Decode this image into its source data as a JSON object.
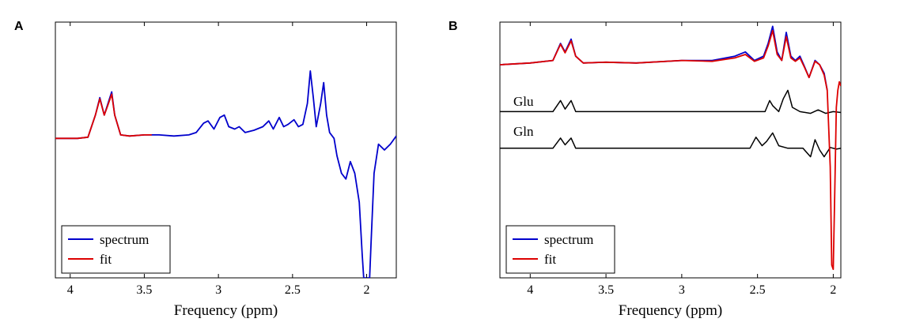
{
  "chart_data": [
    {
      "type": "line",
      "panel_label": "A",
      "xlabel": "Frequency (ppm)",
      "ylabel": "",
      "x_reversed": true,
      "xlim": [
        1.8,
        4.1
      ],
      "ylim": [
        -1.2,
        1.0
      ],
      "xticks": [
        4,
        3.5,
        3,
        2.5,
        2
      ],
      "xtick_labels": [
        "4",
        "3.5",
        "3",
        "2.5",
        "2"
      ],
      "legend": {
        "position": "bottom-left",
        "entries": [
          {
            "label": "spectrum",
            "color": "#0000cc"
          },
          {
            "label": "fit",
            "color": "#dd0000"
          }
        ]
      },
      "series": [
        {
          "name": "spectrum",
          "color": "#0000cc",
          "x": [
            4.1,
            3.95,
            3.88,
            3.83,
            3.8,
            3.77,
            3.75,
            3.72,
            3.7,
            3.66,
            3.6,
            3.5,
            3.4,
            3.3,
            3.2,
            3.15,
            3.1,
            3.07,
            3.03,
            2.99,
            2.96,
            2.93,
            2.89,
            2.86,
            2.82,
            2.76,
            2.7,
            2.66,
            2.63,
            2.59,
            2.56,
            2.53,
            2.49,
            2.46,
            2.43,
            2.4,
            2.38,
            2.36,
            2.34,
            2.31,
            2.29,
            2.27,
            2.25,
            2.22,
            2.2,
            2.17,
            2.14,
            2.11,
            2.08,
            2.05,
            2.03,
            2.02,
            1.98,
            1.97,
            1.95,
            1.92,
            1.88,
            1.84,
            1.8
          ],
          "y": [
            0.0,
            0.0,
            0.01,
            0.2,
            0.35,
            0.2,
            0.28,
            0.4,
            0.2,
            0.03,
            0.02,
            0.03,
            0.03,
            0.02,
            0.03,
            0.05,
            0.13,
            0.15,
            0.08,
            0.18,
            0.2,
            0.1,
            0.08,
            0.1,
            0.05,
            0.07,
            0.1,
            0.15,
            0.08,
            0.18,
            0.1,
            0.12,
            0.16,
            0.1,
            0.12,
            0.3,
            0.58,
            0.35,
            0.1,
            0.3,
            0.48,
            0.2,
            0.05,
            0.0,
            -0.15,
            -0.3,
            -0.35,
            -0.2,
            -0.3,
            -0.55,
            -1.0,
            -1.2,
            -1.2,
            -0.9,
            -0.3,
            -0.05,
            -0.1,
            -0.05,
            0.02
          ]
        },
        {
          "name": "fit",
          "color": "#dd0000",
          "x": [
            4.1,
            3.95,
            3.88,
            3.83,
            3.8,
            3.77,
            3.75,
            3.72,
            3.7,
            3.66,
            3.6,
            3.5,
            3.45
          ],
          "y": [
            0.0,
            0.0,
            0.01,
            0.2,
            0.34,
            0.2,
            0.27,
            0.38,
            0.2,
            0.03,
            0.02,
            0.03,
            0.03
          ]
        }
      ]
    },
    {
      "type": "line",
      "panel_label": "B",
      "xlabel": "Frequency (ppm)",
      "ylabel": "",
      "x_reversed": true,
      "xlim": [
        1.95,
        4.2
      ],
      "ylim": [
        -2.5,
        0.5
      ],
      "xticks": [
        4,
        3.5,
        3,
        2.5,
        2
      ],
      "xtick_labels": [
        "4",
        "3.5",
        "3",
        "2.5",
        "2"
      ],
      "annotations": [
        "Glu",
        "Gln"
      ],
      "legend": {
        "position": "bottom-left",
        "entries": [
          {
            "label": "spectrum",
            "color": "#0000cc"
          },
          {
            "label": "fit",
            "color": "#dd0000"
          }
        ]
      },
      "series": [
        {
          "name": "spectrum",
          "color": "#0000cc",
          "x": [
            4.2,
            4.0,
            3.85,
            3.8,
            3.77,
            3.73,
            3.7,
            3.65,
            3.5,
            3.3,
            3.0,
            2.8,
            2.65,
            2.58,
            2.52,
            2.46,
            2.43,
            2.4,
            2.37,
            2.34,
            2.31,
            2.28,
            2.25,
            2.22,
            2.19,
            2.16,
            2.12,
            2.09,
            2.06,
            2.04
          ],
          "y": [
            0.0,
            0.02,
            0.05,
            0.25,
            0.15,
            0.3,
            0.1,
            0.02,
            0.03,
            0.02,
            0.05,
            0.05,
            0.1,
            0.15,
            0.05,
            0.1,
            0.25,
            0.45,
            0.15,
            0.05,
            0.38,
            0.1,
            0.05,
            0.1,
            -0.02,
            -0.15,
            0.05,
            0.0,
            -0.1,
            -0.3
          ]
        },
        {
          "name": "fit",
          "color": "#dd0000",
          "x": [
            4.2,
            4.0,
            3.85,
            3.8,
            3.77,
            3.73,
            3.7,
            3.65,
            3.5,
            3.3,
            3.0,
            2.8,
            2.65,
            2.58,
            2.52,
            2.46,
            2.43,
            2.4,
            2.37,
            2.34,
            2.31,
            2.28,
            2.25,
            2.22,
            2.19,
            2.16,
            2.12,
            2.09,
            2.06,
            2.04,
            2.02,
            2.01,
            2.0,
            1.99,
            1.98,
            1.97,
            1.96,
            1.95
          ],
          "y": [
            0.0,
            0.02,
            0.05,
            0.24,
            0.14,
            0.28,
            0.1,
            0.02,
            0.03,
            0.02,
            0.05,
            0.04,
            0.08,
            0.12,
            0.04,
            0.08,
            0.22,
            0.4,
            0.12,
            0.05,
            0.33,
            0.08,
            0.04,
            0.08,
            -0.03,
            -0.15,
            0.04,
            0.0,
            -0.12,
            -0.3,
            -1.2,
            -2.35,
            -2.4,
            -1.5,
            -0.5,
            -0.3,
            -0.2,
            -0.25
          ]
        },
        {
          "name": "Glu",
          "color": "#000000",
          "x": [
            4.2,
            3.85,
            3.8,
            3.77,
            3.73,
            3.7,
            3.65,
            2.45,
            2.42,
            2.4,
            2.36,
            2.33,
            2.3,
            2.27,
            2.22,
            2.15,
            2.1,
            2.05,
            2.0,
            1.95
          ],
          "y": [
            -0.55,
            -0.55,
            -0.42,
            -0.52,
            -0.42,
            -0.55,
            -0.55,
            -0.55,
            -0.42,
            -0.48,
            -0.55,
            -0.4,
            -0.3,
            -0.5,
            -0.55,
            -0.57,
            -0.53,
            -0.57,
            -0.55,
            -0.56
          ]
        },
        {
          "name": "Gln",
          "color": "#000000",
          "x": [
            4.2,
            3.85,
            3.8,
            3.77,
            3.73,
            3.7,
            3.65,
            2.55,
            2.51,
            2.47,
            2.44,
            2.4,
            2.36,
            2.3,
            2.2,
            2.15,
            2.12,
            2.09,
            2.06,
            2.02,
            1.98,
            1.95
          ],
          "y": [
            -0.98,
            -0.98,
            -0.86,
            -0.94,
            -0.86,
            -0.98,
            -0.98,
            -0.98,
            -0.85,
            -0.95,
            -0.9,
            -0.8,
            -0.95,
            -0.98,
            -0.98,
            -1.08,
            -0.88,
            -1.0,
            -1.08,
            -0.97,
            -0.99,
            -0.98
          ]
        }
      ]
    }
  ]
}
